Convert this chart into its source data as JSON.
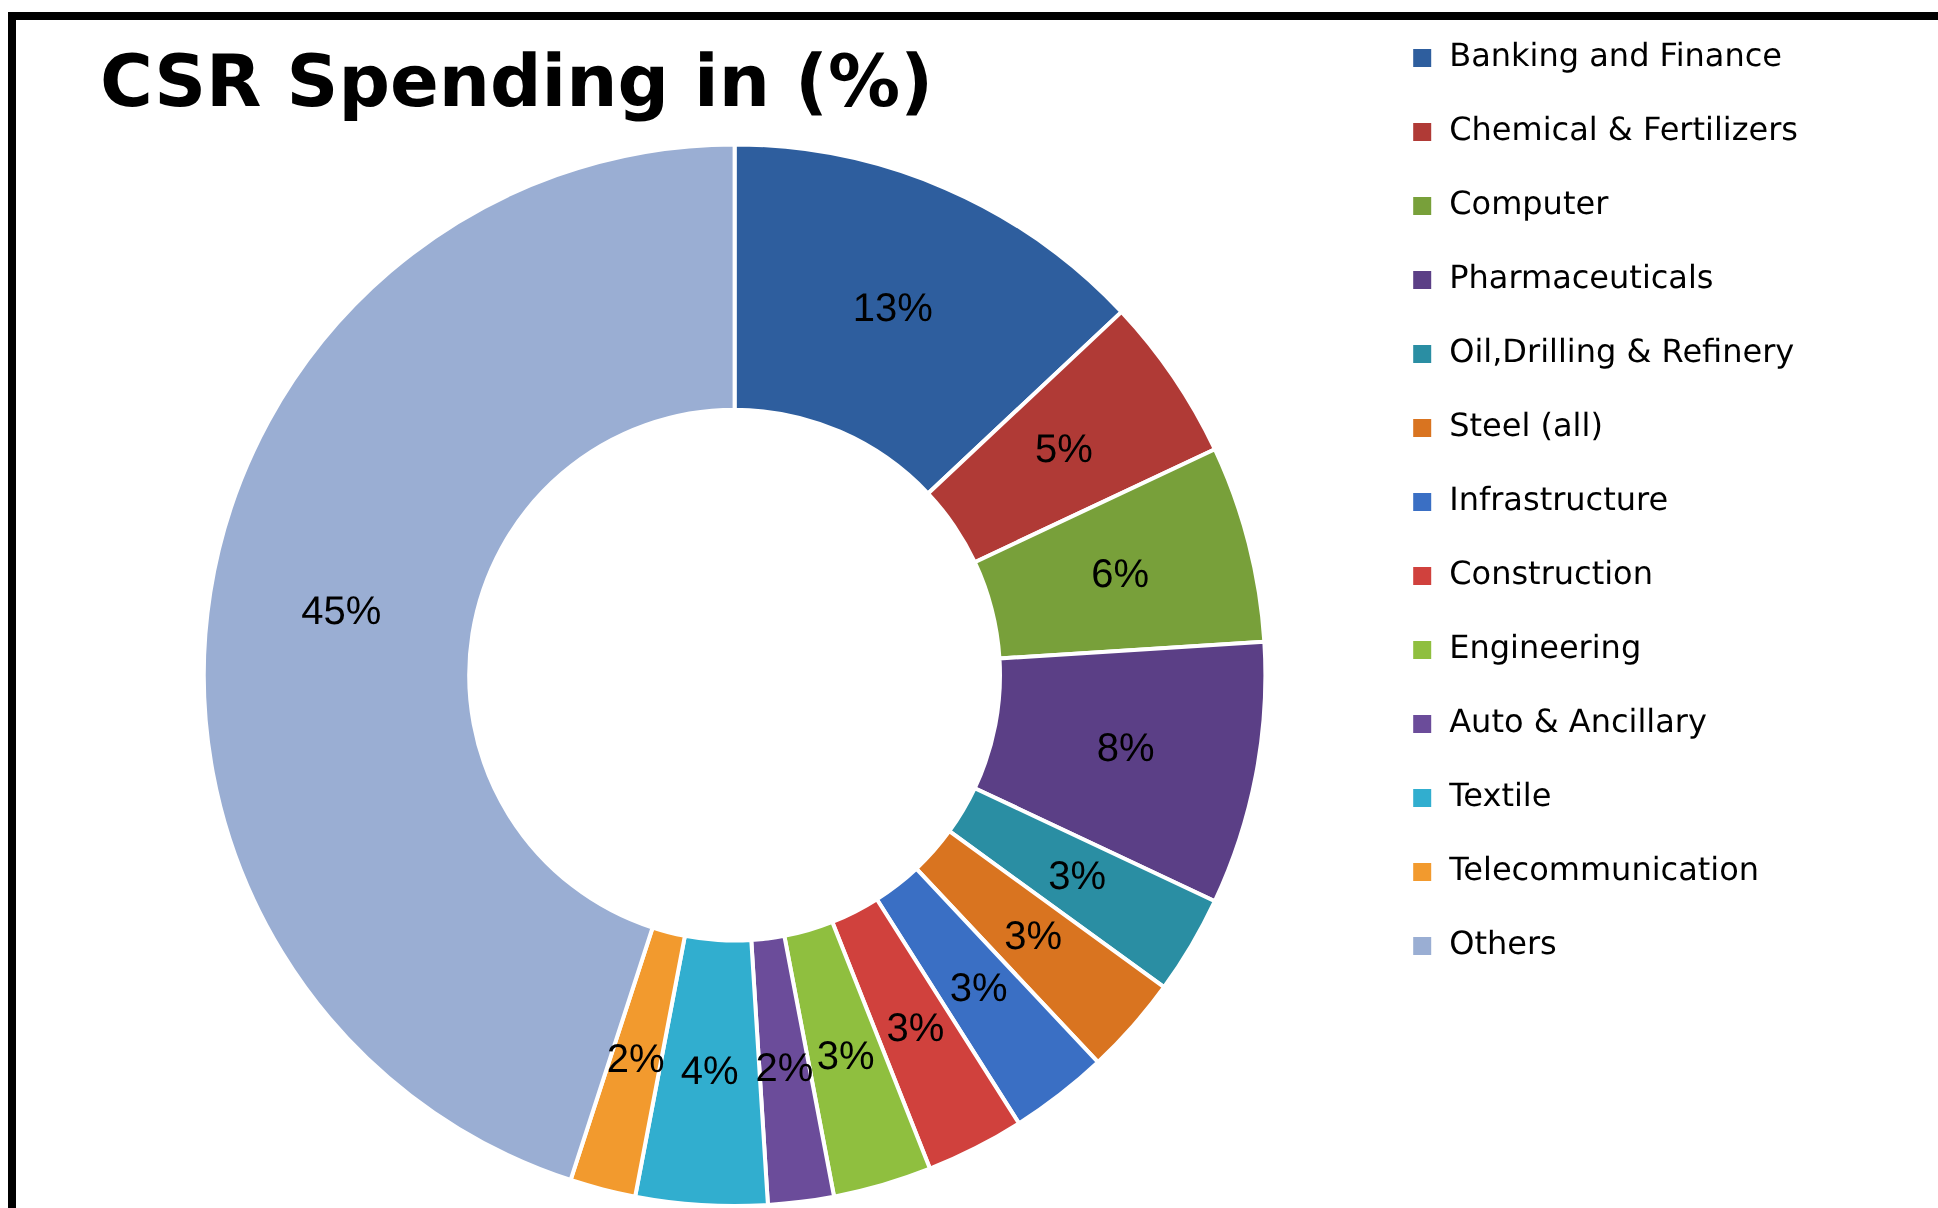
{
  "chart_data": {
    "type": "donut",
    "title": "CSR Spending in (%)",
    "categories": [
      "Banking and Finance",
      "Chemical & Fertilizers",
      "Computer",
      "Pharmaceuticals",
      "Oil,Drilling & Refinery",
      "Steel (all)",
      "Infrastructure",
      "Construction",
      "Engineering",
      "Auto & Ancillary",
      "Textile",
      "Telecommunication",
      "Others"
    ],
    "values": [
      13,
      5,
      6,
      8,
      3,
      3,
      3,
      3,
      3,
      2,
      4,
      2,
      45
    ],
    "value_labels": [
      "13%",
      "5%",
      "6%",
      "8%",
      "3%",
      "3%",
      "3%",
      "3%",
      "3%",
      "2%",
      "4%",
      "2%",
      "45%"
    ],
    "colors": [
      "#2e5e9e",
      "#b03a36",
      "#78a03a",
      "#5b3f86",
      "#2a8ea3",
      "#d97420",
      "#3a6fc4",
      "#d0413d",
      "#8fbf3f",
      "#6b4c9a",
      "#31aecf",
      "#f29a2e",
      "#9aaed3"
    ],
    "legend": "right"
  }
}
